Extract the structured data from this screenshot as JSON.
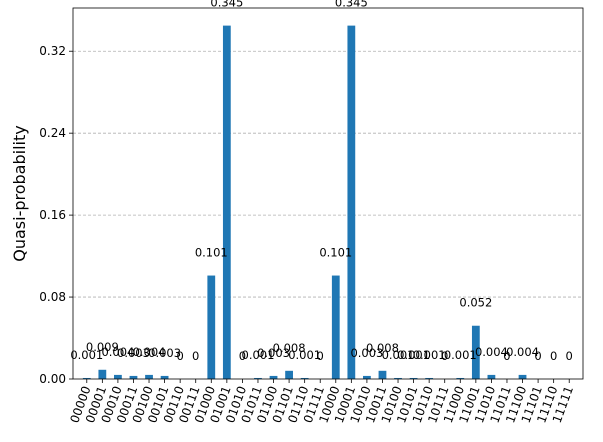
{
  "chart_data": {
    "type": "bar",
    "ylabel": "Quasi-probability",
    "xlabel": "",
    "title": "",
    "ylim": [
      0,
      0.3622
    ],
    "yticks": [
      0.0,
      0.08,
      0.16,
      0.24,
      0.32
    ],
    "ytick_labels": [
      "0.00",
      "0.08",
      "0.16",
      "0.24",
      "0.32"
    ],
    "grid": "y-dashed",
    "bar_color": "#1f77b4",
    "categories": [
      "00000",
      "00001",
      "00010",
      "00011",
      "00100",
      "00101",
      "00110",
      "00111",
      "01000",
      "01001",
      "01010",
      "01011",
      "01100",
      "01101",
      "01110",
      "01111",
      "10000",
      "10001",
      "10010",
      "10011",
      "10100",
      "10101",
      "10110",
      "10111",
      "11000",
      "11001",
      "11010",
      "11011",
      "11100",
      "11101",
      "11110",
      "11111"
    ],
    "values": [
      0.001,
      0.009,
      0.004,
      0.003,
      0.004,
      0.003,
      0,
      0,
      0.101,
      0.345,
      0,
      0.001,
      0.003,
      0.008,
      0.001,
      0,
      0.101,
      0.345,
      0.003,
      0.008,
      0.001,
      0.001,
      0.001,
      0,
      0.001,
      0.052,
      0.004,
      0,
      0.004,
      0,
      0,
      0
    ],
    "value_labels": [
      "0.001",
      "0.009",
      "0.004",
      "0.003",
      "0.004",
      "0.003",
      "0",
      "0",
      "0.101",
      "0.345",
      "0",
      "0.001",
      "0.003",
      "0.008",
      "0.001",
      "0",
      "0.101",
      "0.345",
      "0.003",
      "0.008",
      "0.001",
      "0.001",
      "0.001",
      "0",
      "0.001",
      "0.052",
      "0.004",
      "0",
      "0.004",
      "0",
      "0",
      "0"
    ]
  }
}
